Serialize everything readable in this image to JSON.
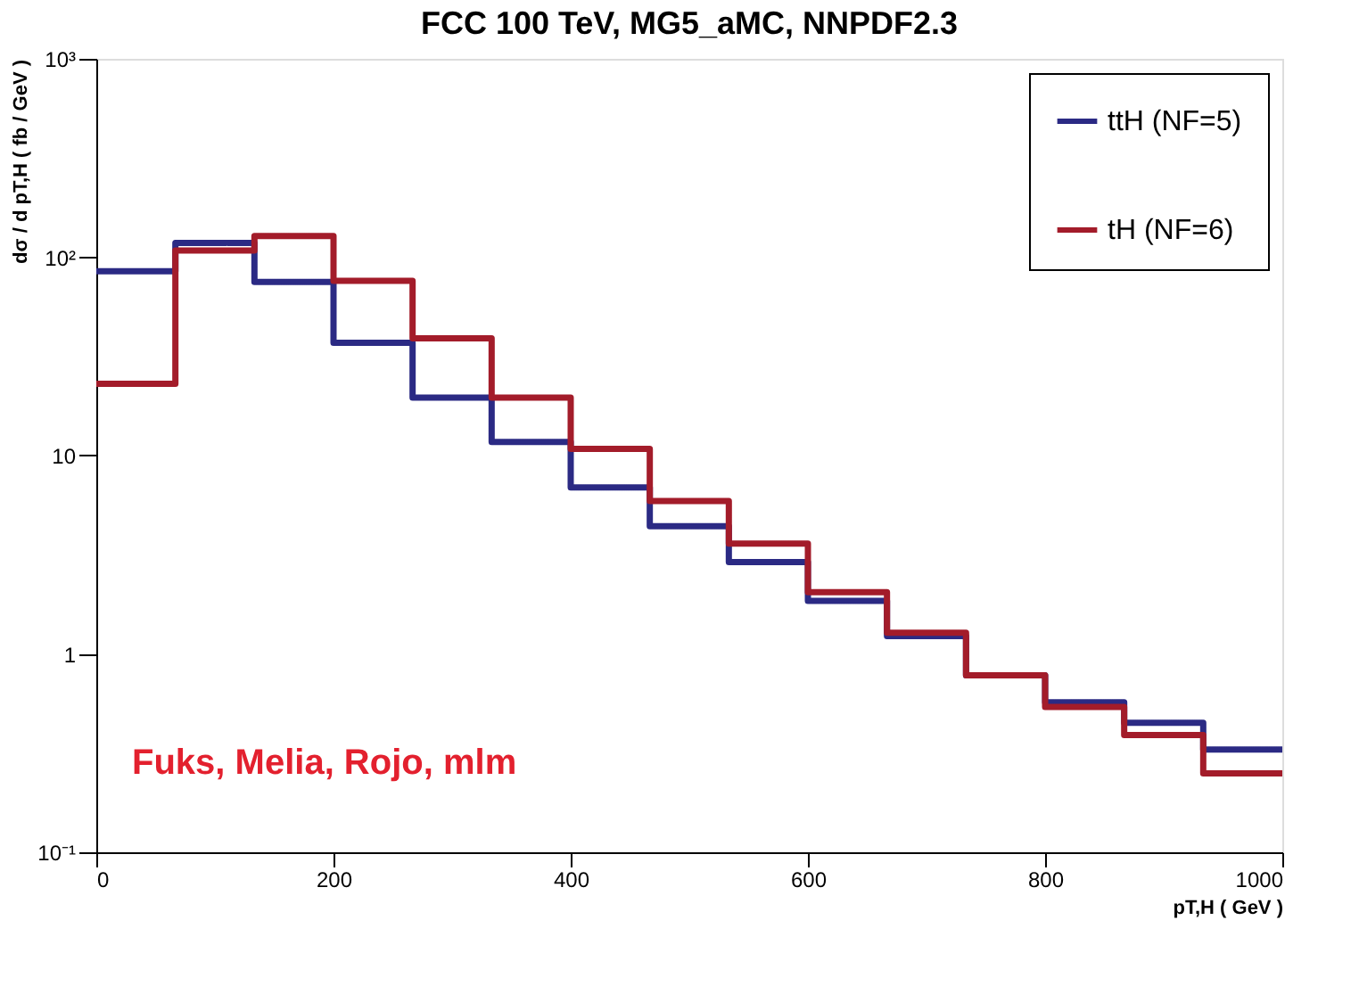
{
  "chart_data": {
    "type": "histogram",
    "title": "FCC 100 TeV, MG5_aMC, NNPDF2.3",
    "xlabel": "pT,H ( GeV )",
    "ylabel": "dσ / d pT,H ( fb / GeV )",
    "bins": [
      0,
      66.67,
      133.33,
      200,
      266.67,
      333.33,
      400,
      466.67,
      533.33,
      600,
      666.67,
      733.33,
      800,
      866.67,
      933.33,
      1000
    ],
    "series": [
      {
        "name": "ttH (NF=5)",
        "color": "#2b2a84",
        "values": [
          85,
          118,
          75,
          37,
          19.6,
          11.7,
          6.9,
          4.4,
          2.9,
          1.85,
          1.23,
          0.78,
          0.57,
          0.45,
          0.33
        ]
      },
      {
        "name": "tH (NF=6)",
        "color": "#a31c2a",
        "values": [
          23,
          108,
          128,
          76,
          39,
          19.6,
          10.8,
          5.9,
          3.6,
          2.05,
          1.28,
          0.78,
          0.54,
          0.39,
          0.25
        ]
      }
    ],
    "xlim": [
      0,
      1000
    ],
    "xticks": [
      0,
      200,
      400,
      600,
      800,
      1000
    ],
    "ylim": [
      0.1,
      1000
    ],
    "log": true,
    "yticks": [
      {
        "value": 0.1,
        "label": "10⁻¹"
      },
      1,
      10,
      {
        "value": 100,
        "label": "10²"
      },
      {
        "value": 1000,
        "label": "10³"
      }
    ],
    "annotations": [
      "Fuks, Melia, Rojo, mlm"
    ],
    "legend": "top right",
    "grid": false,
    "line_style": "solid",
    "marker": "none"
  }
}
